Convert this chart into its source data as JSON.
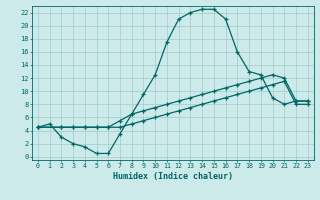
{
  "xlabel": "Humidex (Indice chaleur)",
  "bg_color": "#cceaea",
  "grid_color": "#aacfcf",
  "line_color": "#006666",
  "xlim": [
    -0.5,
    23.5
  ],
  "ylim": [
    -0.5,
    23.0
  ],
  "xticks": [
    0,
    1,
    2,
    3,
    4,
    5,
    6,
    7,
    8,
    9,
    10,
    11,
    12,
    13,
    14,
    15,
    16,
    17,
    18,
    19,
    20,
    21,
    22,
    23
  ],
  "yticks": [
    0,
    2,
    4,
    6,
    8,
    10,
    12,
    14,
    16,
    18,
    20,
    22
  ],
  "line1_x": [
    0,
    1,
    2,
    3,
    4,
    5,
    6,
    7,
    8,
    9,
    10,
    11,
    12,
    13,
    14,
    15,
    16,
    17,
    18,
    19,
    20,
    21,
    22,
    23
  ],
  "line1_y": [
    4.5,
    5.0,
    3.0,
    2.0,
    1.5,
    0.5,
    0.5,
    3.5,
    6.5,
    9.5,
    12.5,
    17.5,
    21.0,
    22.0,
    22.5,
    22.5,
    21.0,
    16.0,
    13.0,
    12.5,
    9.0,
    8.0,
    8.5,
    8.5
  ],
  "line2_x": [
    0,
    2,
    3,
    4,
    5,
    6,
    7,
    8,
    9,
    10,
    11,
    12,
    13,
    14,
    15,
    16,
    17,
    18,
    19,
    20,
    21,
    22,
    23
  ],
  "line2_y": [
    4.5,
    4.5,
    4.5,
    4.5,
    4.5,
    4.5,
    5.5,
    6.5,
    7.0,
    7.5,
    8.0,
    8.5,
    9.0,
    9.5,
    10.0,
    10.5,
    11.0,
    11.5,
    12.0,
    12.5,
    12.0,
    8.5,
    8.5
  ],
  "line3_x": [
    0,
    2,
    3,
    4,
    5,
    6,
    7,
    8,
    9,
    10,
    11,
    12,
    13,
    14,
    15,
    16,
    17,
    18,
    19,
    20,
    21,
    22,
    23
  ],
  "line3_y": [
    4.5,
    4.5,
    4.5,
    4.5,
    4.5,
    4.5,
    4.5,
    5.0,
    5.5,
    6.0,
    6.5,
    7.0,
    7.5,
    8.0,
    8.5,
    9.0,
    9.5,
    10.0,
    10.5,
    11.0,
    11.5,
    8.0,
    8.0
  ]
}
